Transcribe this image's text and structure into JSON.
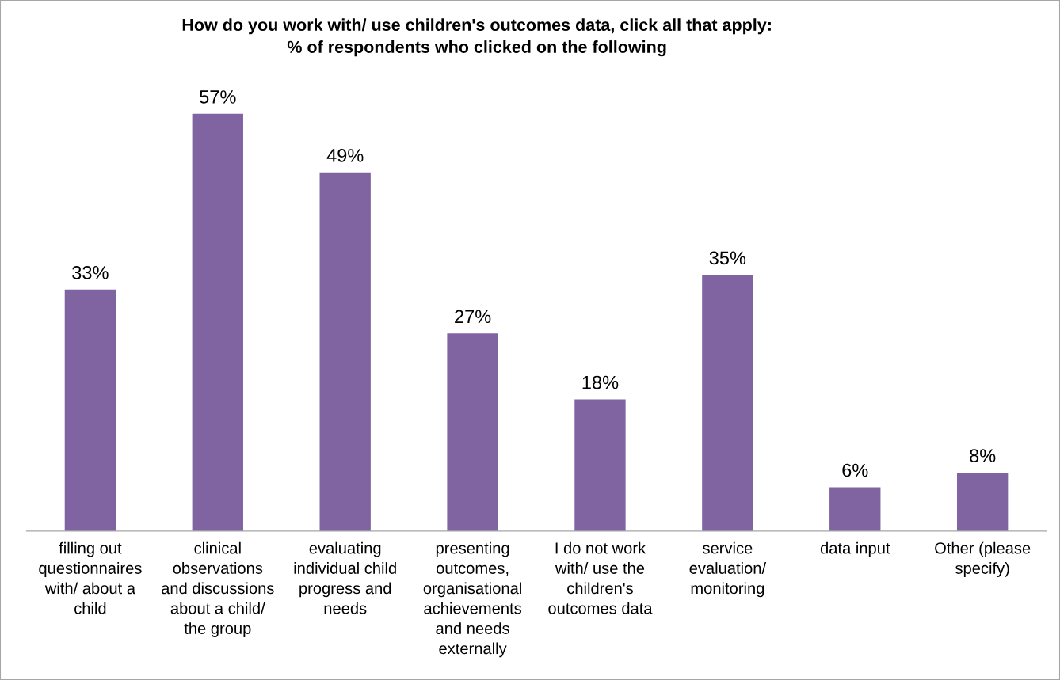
{
  "chart_data": {
    "type": "bar",
    "title": "How do you work with/ use children's outcomes data, click all that apply:\n% of respondents who clicked on the following",
    "categories": [
      "filling out\nquestionnaires\nwith/ about a\nchild",
      "clinical\nobservations\nand discussions\nabout a child/\nthe group",
      "evaluating\nindividual child\nprogress and\nneeds",
      "presenting\noutcomes,\norganisational\nachievements\nand needs\nexternally",
      "I do not work\nwith/ use the\nchildren's\noutcomes data",
      "service\nevaluation/\nmonitoring",
      "data input",
      "Other (please\nspecify)"
    ],
    "values": [
      33,
      57,
      49,
      27,
      18,
      35,
      6,
      8
    ],
    "value_labels": [
      "33%",
      "57%",
      "49%",
      "27%",
      "18%",
      "35%",
      "6%",
      "8%"
    ],
    "color": "#8064a2",
    "grid": false,
    "legend": false
  }
}
